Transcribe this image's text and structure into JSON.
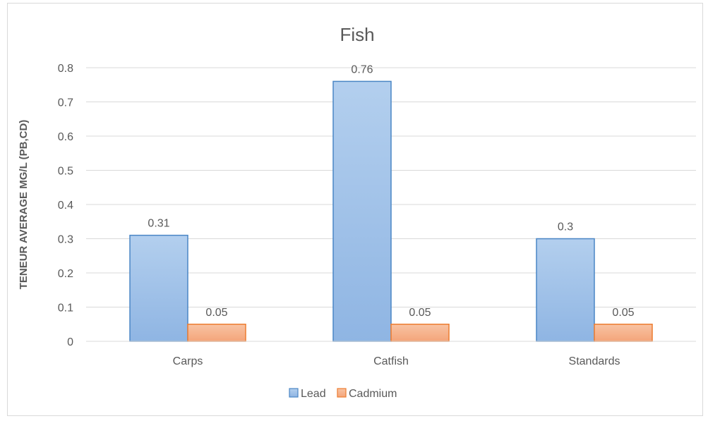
{
  "chart_data": {
    "type": "bar",
    "title": "Fish",
    "xlabel": "",
    "ylabel": "TENEUR AVERAGE MG/L (PB,CD)",
    "categories": [
      "Carps",
      "Catfish",
      "Standards"
    ],
    "series": [
      {
        "name": "Lead",
        "values": [
          0.31,
          0.76,
          0.3
        ],
        "color": "#9dc3e6",
        "border": "#4a86c5"
      },
      {
        "name": "Cadmium",
        "values": [
          0.05,
          0.05,
          0.05
        ],
        "color": "#f4b183",
        "border": "#ed7d31"
      }
    ],
    "data_labels": [
      [
        "0.31",
        "0.76",
        "0.3"
      ],
      [
        "0.05",
        "0.05",
        "0.05"
      ]
    ],
    "ylim": [
      0,
      0.8
    ],
    "yticks": [
      "0",
      "0.1",
      "0.2",
      "0.3",
      "0.4",
      "0.5",
      "0.6",
      "0.7",
      "0.8"
    ],
    "grid": true,
    "legend_position": "bottom"
  }
}
